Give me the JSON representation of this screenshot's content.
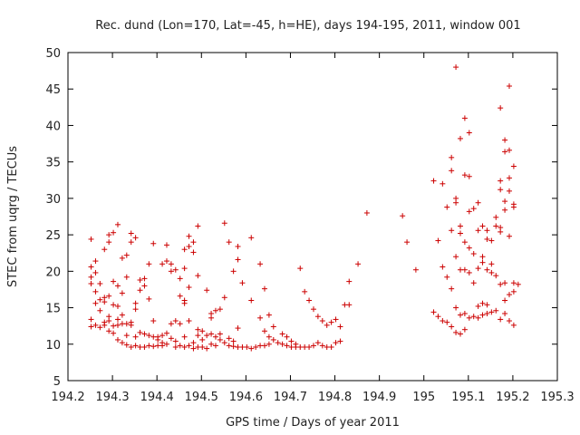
{
  "chart_data": {
    "type": "scatter",
    "title": "Rec. dund (Lon=170, Lat=-45, h=HE), days 194-195, 2011, window 001",
    "xlabel": "GPS time / Days of year 2011",
    "ylabel": "STEC from uqrg / TECUs",
    "xlim": [
      194.2,
      195.3
    ],
    "ylim": [
      5,
      50
    ],
    "xticks": [
      194.2,
      194.3,
      194.4,
      194.5,
      194.6,
      194.7,
      194.8,
      194.9,
      195,
      195.1,
      195.2,
      195.3
    ],
    "xtick_labels": [
      "194.2",
      "194.3",
      "194.4",
      "194.5",
      "194.6",
      "194.7",
      "194.8",
      "194.9",
      "195",
      "195.1",
      "195.2",
      "195.3"
    ],
    "yticks": [
      5,
      10,
      15,
      20,
      25,
      30,
      35,
      40,
      45,
      50
    ],
    "ytick_labels": [
      "5",
      "10",
      "15",
      "20",
      "25",
      "30",
      "35",
      "40",
      "45",
      "50"
    ],
    "grid": false,
    "marker": "+",
    "color": "#cc0000",
    "series": [
      {
        "name": "STEC",
        "points": [
          [
            194.252,
            24.4
          ],
          [
            194.252,
            20.6
          ],
          [
            194.252,
            19.2
          ],
          [
            194.252,
            18.3
          ],
          [
            194.252,
            13.4
          ],
          [
            194.252,
            12.4
          ],
          [
            194.262,
            21.4
          ],
          [
            194.262,
            19.8
          ],
          [
            194.262,
            15.6
          ],
          [
            194.262,
            12.6
          ],
          [
            194.262,
            17.2
          ],
          [
            194.272,
            18.3
          ],
          [
            194.272,
            16.1
          ],
          [
            194.272,
            14.6
          ],
          [
            194.272,
            12.3
          ],
          [
            194.282,
            23.0
          ],
          [
            194.282,
            16.4
          ],
          [
            194.282,
            15.8
          ],
          [
            194.282,
            13.0
          ],
          [
            194.282,
            12.6
          ],
          [
            194.292,
            25.0
          ],
          [
            194.292,
            24.0
          ],
          [
            194.292,
            16.6
          ],
          [
            194.292,
            13.8
          ],
          [
            194.292,
            13.2
          ],
          [
            194.292,
            11.8
          ],
          [
            194.302,
            25.3
          ],
          [
            194.302,
            18.6
          ],
          [
            194.302,
            15.4
          ],
          [
            194.302,
            12.5
          ],
          [
            194.302,
            11.5
          ],
          [
            194.312,
            26.4
          ],
          [
            194.312,
            18.0
          ],
          [
            194.312,
            15.2
          ],
          [
            194.312,
            13.4
          ],
          [
            194.312,
            12.6
          ],
          [
            194.312,
            10.6
          ],
          [
            194.322,
            21.8
          ],
          [
            194.322,
            17.0
          ],
          [
            194.322,
            14.0
          ],
          [
            194.322,
            12.8
          ],
          [
            194.322,
            10.2
          ],
          [
            194.332,
            22.2
          ],
          [
            194.332,
            19.2
          ],
          [
            194.332,
            12.8
          ],
          [
            194.332,
            11.2
          ],
          [
            194.332,
            9.9
          ],
          [
            194.342,
            25.2
          ],
          [
            194.342,
            24.0
          ],
          [
            194.342,
            13.0
          ],
          [
            194.342,
            12.6
          ],
          [
            194.342,
            9.6
          ],
          [
            194.352,
            24.6
          ],
          [
            194.352,
            15.6
          ],
          [
            194.352,
            14.8
          ],
          [
            194.352,
            11.0
          ],
          [
            194.352,
            9.8
          ],
          [
            194.362,
            18.8
          ],
          [
            194.362,
            17.4
          ],
          [
            194.362,
            11.6
          ],
          [
            194.362,
            9.6
          ],
          [
            194.372,
            19.0
          ],
          [
            194.372,
            18.0
          ],
          [
            194.372,
            11.4
          ],
          [
            194.372,
            9.6
          ],
          [
            194.382,
            21.0
          ],
          [
            194.382,
            16.2
          ],
          [
            194.382,
            11.2
          ],
          [
            194.382,
            9.8
          ],
          [
            194.392,
            23.8
          ],
          [
            194.392,
            11.0
          ],
          [
            194.392,
            13.2
          ],
          [
            194.392,
            9.7
          ],
          [
            194.402,
            11.0
          ],
          [
            194.402,
            10.6
          ],
          [
            194.402,
            9.8
          ],
          [
            194.412,
            21.0
          ],
          [
            194.412,
            11.2
          ],
          [
            194.412,
            10.2
          ],
          [
            194.412,
            9.8
          ],
          [
            194.422,
            23.6
          ],
          [
            194.422,
            21.4
          ],
          [
            194.422,
            11.5
          ],
          [
            194.422,
            10.0
          ],
          [
            194.432,
            21.0
          ],
          [
            194.432,
            20.0
          ],
          [
            194.432,
            12.8
          ],
          [
            194.432,
            10.8
          ],
          [
            194.442,
            20.2
          ],
          [
            194.442,
            13.2
          ],
          [
            194.442,
            10.4
          ],
          [
            194.442,
            9.6
          ],
          [
            194.452,
            19.0
          ],
          [
            194.452,
            16.6
          ],
          [
            194.452,
            12.8
          ],
          [
            194.452,
            9.8
          ],
          [
            194.462,
            23.0
          ],
          [
            194.462,
            20.4
          ],
          [
            194.462,
            16.0
          ],
          [
            194.462,
            15.6
          ],
          [
            194.462,
            11.0
          ],
          [
            194.462,
            9.6
          ],
          [
            194.472,
            24.8
          ],
          [
            194.472,
            23.4
          ],
          [
            194.472,
            17.8
          ],
          [
            194.472,
            13.2
          ],
          [
            194.472,
            9.8
          ],
          [
            194.482,
            24.0
          ],
          [
            194.482,
            22.6
          ],
          [
            194.482,
            10.2
          ],
          [
            194.482,
            9.4
          ],
          [
            194.492,
            26.2
          ],
          [
            194.492,
            19.4
          ],
          [
            194.492,
            12.0
          ],
          [
            194.492,
            11.2
          ],
          [
            194.492,
            9.6
          ],
          [
            194.502,
            11.8
          ],
          [
            194.502,
            10.6
          ],
          [
            194.502,
            9.6
          ],
          [
            194.512,
            17.4
          ],
          [
            194.512,
            11.2
          ],
          [
            194.512,
            9.4
          ],
          [
            194.522,
            14.2
          ],
          [
            194.522,
            13.6
          ],
          [
            194.522,
            11.4
          ],
          [
            194.522,
            10.0
          ],
          [
            194.532,
            14.6
          ],
          [
            194.532,
            11.0
          ],
          [
            194.532,
            9.8
          ],
          [
            194.542,
            14.8
          ],
          [
            194.542,
            11.4
          ],
          [
            194.542,
            10.6
          ],
          [
            194.552,
            26.6
          ],
          [
            194.552,
            16.4
          ],
          [
            194.552,
            10.2
          ],
          [
            194.562,
            24.0
          ],
          [
            194.562,
            10.8
          ],
          [
            194.562,
            9.8
          ],
          [
            194.572,
            20.0
          ],
          [
            194.572,
            10.4
          ],
          [
            194.572,
            9.7
          ],
          [
            194.582,
            23.4
          ],
          [
            194.582,
            21.6
          ],
          [
            194.582,
            12.2
          ],
          [
            194.582,
            9.6
          ],
          [
            194.592,
            18.4
          ],
          [
            194.592,
            9.6
          ],
          [
            194.602,
            9.6
          ],
          [
            194.612,
            24.6
          ],
          [
            194.612,
            16.0
          ],
          [
            194.612,
            9.4
          ],
          [
            194.622,
            9.6
          ],
          [
            194.632,
            21.0
          ],
          [
            194.632,
            13.6
          ],
          [
            194.632,
            9.8
          ],
          [
            194.642,
            17.6
          ],
          [
            194.642,
            11.8
          ],
          [
            194.642,
            9.8
          ],
          [
            194.652,
            14.0
          ],
          [
            194.652,
            11.0
          ],
          [
            194.652,
            10.0
          ],
          [
            194.662,
            12.4
          ],
          [
            194.662,
            10.6
          ],
          [
            194.672,
            10.2
          ],
          [
            194.682,
            11.4
          ],
          [
            194.682,
            10.0
          ],
          [
            194.692,
            11.0
          ],
          [
            194.692,
            9.8
          ],
          [
            194.702,
            10.4
          ],
          [
            194.702,
            9.6
          ],
          [
            194.712,
            10.0
          ],
          [
            194.712,
            9.6
          ],
          [
            194.722,
            20.4
          ],
          [
            194.722,
            9.6
          ],
          [
            194.732,
            17.2
          ],
          [
            194.732,
            9.6
          ],
          [
            194.742,
            16.0
          ],
          [
            194.742,
            9.6
          ],
          [
            194.752,
            14.8
          ],
          [
            194.752,
            9.8
          ],
          [
            194.762,
            13.8
          ],
          [
            194.762,
            10.2
          ],
          [
            194.772,
            13.2
          ],
          [
            194.772,
            9.8
          ],
          [
            194.782,
            12.6
          ],
          [
            194.782,
            9.6
          ],
          [
            194.792,
            13.0
          ],
          [
            194.792,
            9.6
          ],
          [
            194.802,
            13.4
          ],
          [
            194.802,
            10.2
          ],
          [
            194.812,
            12.4
          ],
          [
            194.812,
            10.4
          ],
          [
            194.822,
            15.4
          ],
          [
            194.832,
            18.6
          ],
          [
            194.832,
            15.4
          ],
          [
            194.852,
            21.0
          ],
          [
            194.872,
            28.0
          ],
          [
            194.952,
            27.6
          ],
          [
            194.962,
            24.0
          ],
          [
            194.982,
            20.2
          ],
          [
            195.022,
            32.4
          ],
          [
            195.022,
            14.4
          ],
          [
            195.032,
            24.2
          ],
          [
            195.032,
            13.8
          ],
          [
            195.042,
            32.0
          ],
          [
            195.042,
            20.6
          ],
          [
            195.042,
            13.2
          ],
          [
            195.052,
            28.8
          ],
          [
            195.052,
            19.2
          ],
          [
            195.052,
            13.0
          ],
          [
            195.062,
            35.6
          ],
          [
            195.062,
            33.8
          ],
          [
            195.062,
            25.6
          ],
          [
            195.062,
            17.6
          ],
          [
            195.062,
            12.4
          ],
          [
            195.072,
            48.0
          ],
          [
            195.072,
            30.0
          ],
          [
            195.072,
            29.4
          ],
          [
            195.072,
            22.0
          ],
          [
            195.072,
            15.0
          ],
          [
            195.072,
            11.6
          ],
          [
            195.082,
            38.2
          ],
          [
            195.082,
            26.2
          ],
          [
            195.082,
            25.2
          ],
          [
            195.082,
            20.2
          ],
          [
            195.082,
            14.0
          ],
          [
            195.082,
            11.4
          ],
          [
            195.092,
            41.0
          ],
          [
            195.092,
            33.2
          ],
          [
            195.092,
            24.0
          ],
          [
            195.092,
            20.2
          ],
          [
            195.092,
            14.2
          ],
          [
            195.092,
            12.0
          ],
          [
            195.102,
            39.0
          ],
          [
            195.102,
            33.0
          ],
          [
            195.102,
            28.2
          ],
          [
            195.102,
            23.2
          ],
          [
            195.102,
            19.8
          ],
          [
            195.102,
            13.6
          ],
          [
            195.112,
            28.6
          ],
          [
            195.112,
            22.4
          ],
          [
            195.112,
            18.4
          ],
          [
            195.112,
            13.8
          ],
          [
            195.122,
            29.4
          ],
          [
            195.122,
            25.6
          ],
          [
            195.122,
            20.4
          ],
          [
            195.122,
            15.2
          ],
          [
            195.122,
            13.6
          ],
          [
            195.132,
            26.2
          ],
          [
            195.132,
            22.0
          ],
          [
            195.132,
            21.2
          ],
          [
            195.132,
            15.6
          ],
          [
            195.132,
            14.0
          ],
          [
            195.142,
            25.6
          ],
          [
            195.142,
            24.4
          ],
          [
            195.142,
            20.2
          ],
          [
            195.142,
            15.4
          ],
          [
            195.142,
            14.2
          ],
          [
            195.152,
            24.2
          ],
          [
            195.152,
            21.0
          ],
          [
            195.152,
            19.8
          ],
          [
            195.152,
            14.4
          ],
          [
            195.162,
            27.4
          ],
          [
            195.162,
            26.2
          ],
          [
            195.162,
            19.4
          ],
          [
            195.162,
            14.6
          ],
          [
            195.172,
            42.4
          ],
          [
            195.172,
            32.4
          ],
          [
            195.172,
            31.2
          ],
          [
            195.172,
            26.0
          ],
          [
            195.172,
            25.4
          ],
          [
            195.172,
            18.2
          ],
          [
            195.172,
            13.4
          ],
          [
            195.182,
            38.0
          ],
          [
            195.182,
            36.4
          ],
          [
            195.182,
            29.6
          ],
          [
            195.182,
            28.4
          ],
          [
            195.182,
            18.4
          ],
          [
            195.182,
            16.0
          ],
          [
            195.182,
            14.2
          ],
          [
            195.192,
            45.4
          ],
          [
            195.192,
            36.6
          ],
          [
            195.192,
            32.8
          ],
          [
            195.192,
            31.0
          ],
          [
            195.192,
            24.8
          ],
          [
            195.192,
            16.8
          ],
          [
            195.192,
            13.2
          ],
          [
            195.202,
            34.4
          ],
          [
            195.202,
            29.2
          ],
          [
            195.202,
            28.8
          ],
          [
            195.202,
            18.4
          ],
          [
            195.202,
            17.2
          ],
          [
            195.202,
            12.6
          ],
          [
            195.212,
            18.2
          ]
        ]
      }
    ]
  }
}
